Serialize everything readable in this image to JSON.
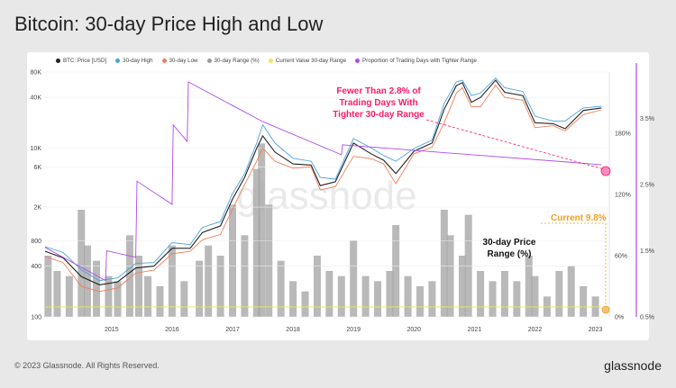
{
  "page": {
    "title": "Bitcoin: 30-day Price High and Low",
    "copyright": "© 2023 Glassnode. All Rights Reserved.",
    "brand": "glassnode",
    "watermark": "glassnode"
  },
  "legend": [
    {
      "label": "BTC: Price [USD]",
      "color": "#222222"
    },
    {
      "label": "30-day High",
      "color": "#4aa3df"
    },
    {
      "label": "30-day Low",
      "color": "#f07d5a"
    },
    {
      "label": "30-day Range (%)",
      "color": "#9a9a9a"
    },
    {
      "label": "Current Value 30-day Range",
      "color": "#f2e85a"
    },
    {
      "label": "Proportion of Trading Days with Tighter Range",
      "color": "#b04af0"
    }
  ],
  "annotations": {
    "fewer_line1": "Fewer Than 2.8% of",
    "fewer_line2": "Trading Days With",
    "fewer_line3": "Tighter 30-day Range",
    "current": "Current 9.8%",
    "range_line1": "30-day Price",
    "range_line2": "Range (%)"
  },
  "chart_data": {
    "type": "line",
    "title": "Bitcoin: 30-day Price High and Low",
    "x_axis": {
      "ticks": [
        "2015",
        "2016",
        "2017",
        "2018",
        "2019",
        "2020",
        "2021",
        "2022",
        "2023"
      ],
      "range": [
        2014.4,
        2023.7
      ]
    },
    "y_left": {
      "label": "",
      "scale": "log",
      "ticks": [
        "80K",
        "40K",
        "10K",
        "6K",
        "2K",
        "800",
        "400",
        "100"
      ],
      "tick_values": [
        80000,
        40000,
        10000,
        6000,
        2000,
        800,
        400,
        100
      ],
      "range": [
        100,
        80000
      ]
    },
    "y_right_range": {
      "ticks": [
        "180%",
        "120%",
        "60%",
        "0%"
      ],
      "tick_values": [
        180,
        120,
        60,
        0
      ],
      "range": [
        0,
        240
      ]
    },
    "y_right_proportion": {
      "ticks": [
        "3.5%",
        "2.5%",
        "1.5%",
        "0.5%"
      ],
      "tick_values": [
        3.5,
        2.5,
        1.5,
        0.5
      ],
      "range": [
        0.5,
        4.2
      ]
    },
    "series": [
      {
        "name": "BTC: Price [USD]",
        "color": "#222222",
        "x": [
          2014.4,
          2014.7,
          2015.0,
          2015.3,
          2015.6,
          2015.9,
          2016.2,
          2016.5,
          2016.8,
          2017.0,
          2017.3,
          2017.5,
          2017.7,
          2017.9,
          2018.0,
          2018.2,
          2018.5,
          2018.8,
          2018.95,
          2019.2,
          2019.5,
          2019.8,
          2020.0,
          2020.2,
          2020.5,
          2020.8,
          2021.0,
          2021.2,
          2021.3,
          2021.45,
          2021.6,
          2021.85,
          2022.0,
          2022.3,
          2022.5,
          2022.8,
          2023.0,
          2023.3,
          2023.6
        ],
        "values": [
          600,
          500,
          300,
          240,
          260,
          380,
          400,
          650,
          650,
          1000,
          1200,
          2500,
          4500,
          10000,
          14000,
          9000,
          6500,
          6300,
          3600,
          4000,
          11500,
          8500,
          7200,
          5000,
          9200,
          11500,
          29000,
          55000,
          60000,
          35000,
          40000,
          64000,
          46000,
          42000,
          20000,
          19500,
          17000,
          28000,
          30000
        ]
      },
      {
        "name": "30-day High",
        "color": "#4aa3df",
        "x": [
          2014.4,
          2014.7,
          2015.0,
          2015.3,
          2015.6,
          2015.9,
          2016.2,
          2016.5,
          2016.8,
          2017.0,
          2017.3,
          2017.5,
          2017.7,
          2017.9,
          2018.0,
          2018.2,
          2018.5,
          2018.8,
          2018.95,
          2019.2,
          2019.5,
          2019.8,
          2020.0,
          2020.2,
          2020.5,
          2020.8,
          2021.0,
          2021.2,
          2021.3,
          2021.45,
          2021.6,
          2021.85,
          2022.0,
          2022.3,
          2022.5,
          2022.8,
          2023.0,
          2023.3,
          2023.6
        ],
        "values": [
          680,
          580,
          360,
          270,
          290,
          430,
          440,
          760,
          720,
          1150,
          1350,
          2900,
          5000,
          11500,
          19000,
          11500,
          7600,
          7000,
          4500,
          4300,
          13000,
          10000,
          8200,
          7000,
          9900,
          12500,
          34000,
          61000,
          64000,
          42000,
          45000,
          68000,
          52000,
          47000,
          24000,
          21000,
          21000,
          30000,
          31500
        ]
      },
      {
        "name": "30-day Low",
        "color": "#f07d5a",
        "x": [
          2014.4,
          2014.7,
          2015.0,
          2015.3,
          2015.6,
          2015.9,
          2016.2,
          2016.5,
          2016.8,
          2017.0,
          2017.3,
          2017.5,
          2017.7,
          2017.9,
          2018.0,
          2018.2,
          2018.5,
          2018.8,
          2018.95,
          2019.2,
          2019.5,
          2019.8,
          2020.0,
          2020.2,
          2020.5,
          2020.8,
          2021.0,
          2021.2,
          2021.3,
          2021.45,
          2021.6,
          2021.85,
          2022.0,
          2022.3,
          2022.5,
          2022.8,
          2023.0,
          2023.3,
          2023.6
        ],
        "values": [
          520,
          440,
          230,
          200,
          220,
          330,
          360,
          560,
          600,
          820,
          950,
          1900,
          3700,
          7000,
          10000,
          7000,
          5800,
          6000,
          3200,
          3500,
          8000,
          7500,
          6500,
          3800,
          8600,
          10300,
          20000,
          45000,
          52000,
          31000,
          31000,
          56000,
          40000,
          37000,
          17500,
          18500,
          16000,
          25000,
          28500
        ]
      },
      {
        "name": "Proportion of Trading Days with Tighter Range",
        "color": "#b04af0",
        "x": [
          2014.4,
          2015.4,
          2015.42,
          2015.9,
          2015.92,
          2016.5,
          2016.52,
          2016.75,
          2016.77,
          2018.0,
          2019.3,
          2019.32,
          2023.6
        ],
        "values": [
          1.55,
          1.05,
          1.5,
          1.4,
          2.55,
          2.2,
          3.4,
          3.15,
          4.05,
          3.45,
          2.95,
          3.1,
          2.8
        ]
      },
      {
        "name": "Current Value 30-day Range",
        "color": "#f2e85a",
        "x": [
          2014.4,
          2023.6
        ],
        "values": [
          9.8,
          9.8
        ]
      }
    ],
    "range_bars": {
      "name": "30-day Range (%)",
      "x": [
        2014.45,
        2014.6,
        2014.8,
        2015.0,
        2015.1,
        2015.25,
        2015.45,
        2015.6,
        2015.8,
        2015.95,
        2016.1,
        2016.3,
        2016.5,
        2016.7,
        2016.95,
        2017.1,
        2017.3,
        2017.5,
        2017.7,
        2017.9,
        2017.98,
        2018.1,
        2018.3,
        2018.5,
        2018.7,
        2018.9,
        2019.1,
        2019.3,
        2019.5,
        2019.7,
        2019.9,
        2020.1,
        2020.2,
        2020.4,
        2020.6,
        2020.8,
        2021.0,
        2021.1,
        2021.3,
        2021.4,
        2021.6,
        2021.8,
        2022.0,
        2022.2,
        2022.4,
        2022.5,
        2022.7,
        2022.9,
        2023.1,
        2023.3,
        2023.5
      ],
      "values": [
        60,
        45,
        40,
        105,
        70,
        55,
        40,
        35,
        80,
        60,
        40,
        30,
        70,
        35,
        55,
        70,
        60,
        110,
        80,
        145,
        170,
        110,
        55,
        35,
        25,
        60,
        45,
        40,
        75,
        40,
        35,
        45,
        90,
        40,
        30,
        35,
        105,
        80,
        60,
        100,
        45,
        35,
        45,
        35,
        60,
        40,
        20,
        45,
        50,
        30,
        20
      ]
    }
  }
}
